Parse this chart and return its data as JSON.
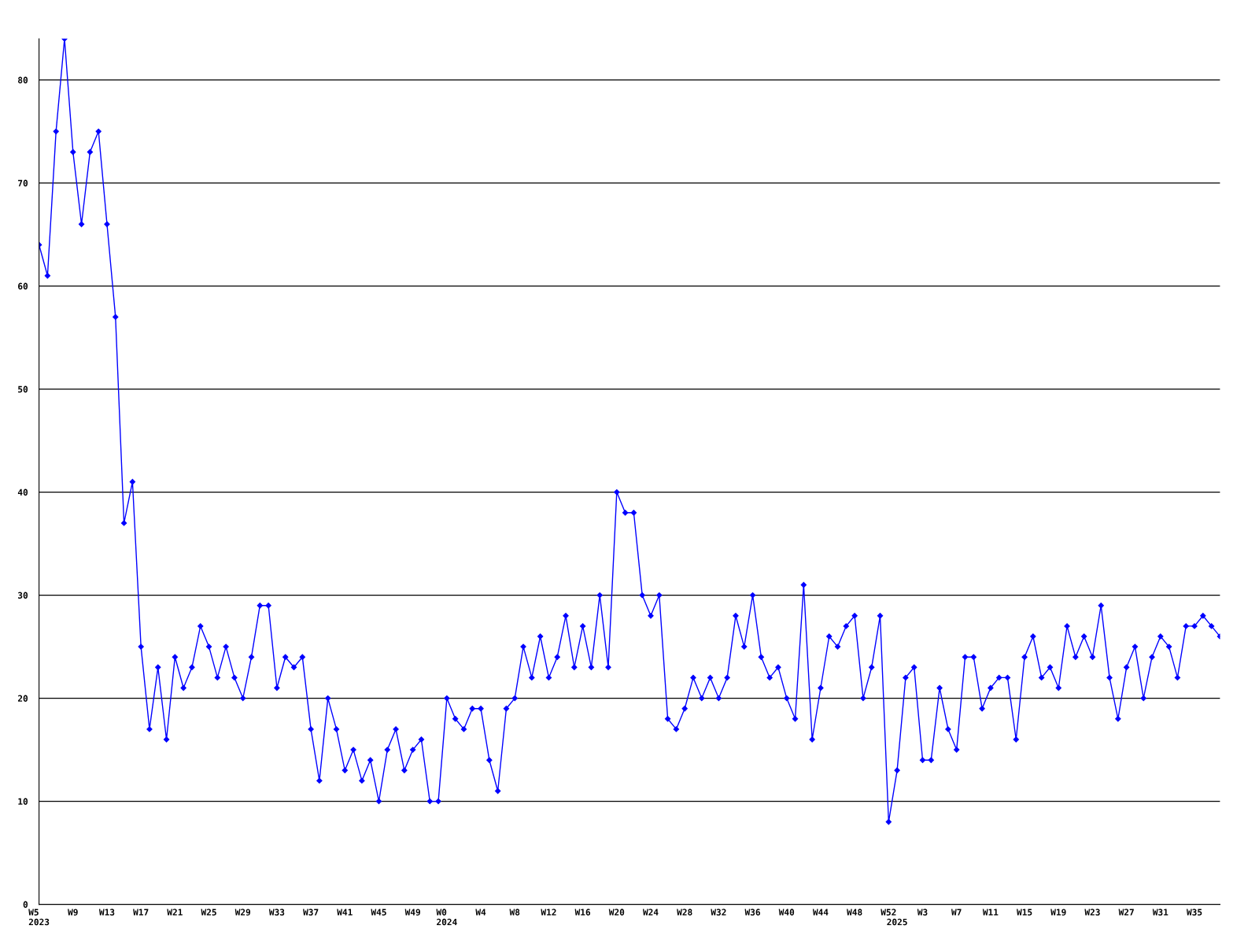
{
  "chart_data": {
    "type": "line",
    "categories": [
      "W5\n2023",
      null,
      null,
      null,
      "W9",
      null,
      null,
      null,
      "W13",
      null,
      null,
      null,
      "W17",
      null,
      null,
      null,
      "W21",
      null,
      null,
      null,
      "W25",
      null,
      null,
      null,
      "W29",
      null,
      null,
      null,
      "W33",
      null,
      null,
      null,
      "W37",
      null,
      null,
      null,
      "W41",
      null,
      null,
      null,
      "W45",
      null,
      null,
      null,
      "W49",
      null,
      null,
      null,
      "W0\n2024",
      null,
      null,
      null,
      "W4",
      null,
      null,
      null,
      "W8",
      null,
      null,
      null,
      "W12",
      null,
      null,
      null,
      "W16",
      null,
      null,
      null,
      "W20",
      null,
      null,
      null,
      "W24",
      null,
      null,
      null,
      "W28",
      null,
      null,
      null,
      "W32",
      null,
      null,
      null,
      "W36",
      null,
      null,
      null,
      "W40",
      null,
      null,
      null,
      "W44",
      null,
      null,
      null,
      "W48",
      null,
      null,
      null,
      "W52",
      "\n2025",
      null,
      null,
      "W3",
      null,
      null,
      null,
      "W7",
      null,
      null,
      null,
      "W11",
      null,
      null,
      null,
      "W15",
      null,
      null,
      null,
      "W19",
      null,
      null,
      null,
      "W23",
      null,
      null,
      null,
      "W27",
      null,
      null,
      null,
      "W31",
      null,
      null,
      null,
      "W35",
      null,
      null,
      null
    ],
    "series": [
      {
        "color": "#0000ff",
        "values": [
          64,
          61,
          75,
          84,
          73,
          66,
          73,
          75,
          66,
          57,
          37,
          41,
          25,
          17,
          23,
          16,
          24,
          21,
          23,
          27,
          25,
          22,
          25,
          22,
          20,
          24,
          29,
          29,
          21,
          24,
          23,
          24,
          17,
          12,
          20,
          17,
          13,
          15,
          12,
          14,
          10,
          15,
          17,
          13,
          15,
          16,
          10,
          10,
          20,
          18,
          17,
          19,
          19,
          14,
          11,
          19,
          20,
          25,
          22,
          26,
          22,
          24,
          28,
          23,
          27,
          23,
          30,
          23,
          40,
          38,
          38,
          30,
          28,
          30,
          18,
          17,
          19,
          22,
          20,
          22,
          20,
          22,
          28,
          25,
          30,
          24,
          22,
          23,
          20,
          18,
          31,
          16,
          21,
          26,
          25,
          27,
          28,
          20,
          23,
          28,
          8,
          13,
          22,
          23,
          14,
          14,
          21,
          17,
          15,
          24,
          24,
          19,
          21,
          22,
          22,
          16,
          24,
          26,
          22,
          23,
          21,
          27,
          24,
          26,
          24,
          29,
          22,
          18,
          23,
          25,
          20,
          24,
          26,
          25,
          22,
          27,
          27,
          28,
          27,
          26
        ]
      }
    ],
    "ylim": [
      0,
      84
    ],
    "yticks": [
      0,
      10,
      20,
      30,
      40,
      50,
      60,
      70,
      80
    ],
    "grid": "y",
    "marker": "diamond",
    "line_style": "solid"
  }
}
